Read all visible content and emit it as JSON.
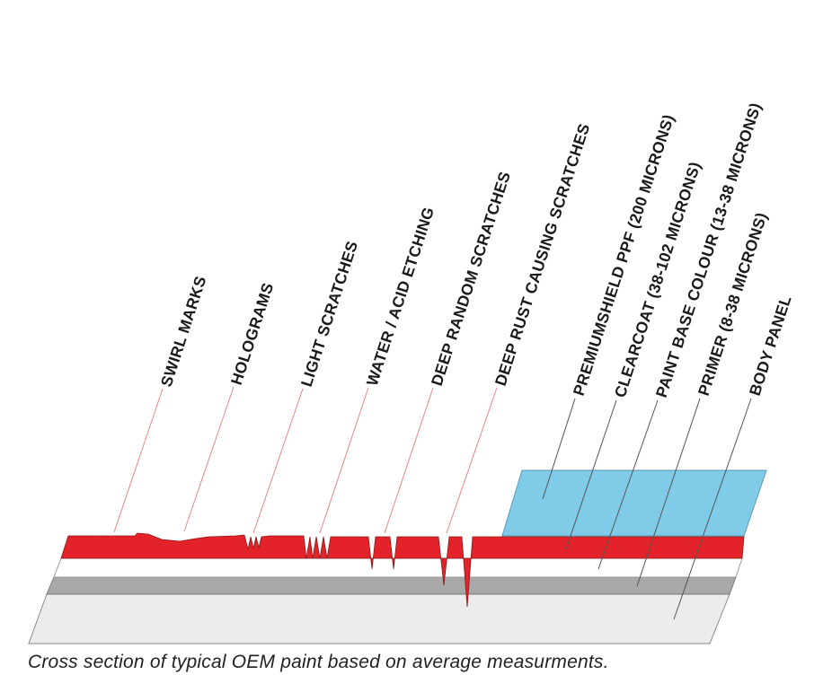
{
  "labels": {
    "swirl_marks": "SWIRL MARKS",
    "holograms": "HOLOGRAMS",
    "light_scratches": "LIGHT SCRATCHES",
    "water_acid_etching": "WATER / ACID ETCHING",
    "deep_random_scratches": "DEEP RANDOM SCRATCHES",
    "deep_rust_scratches": "DEEP RUST CAUSING SCRATCHES",
    "ppf": "PREMIUMSHIELD PPF (200 MICRONS)",
    "clearcoat": "CLEARCOAT (38-102 MICRONS)",
    "paint_base": "PAINT BASE COLOUR (13-38 MICRONS)",
    "primer": "PRIMER (8-38 MICRONS)",
    "body_panel": "BODY PANEL"
  },
  "caption": "Cross section of typical OEM paint based on average measurments.",
  "colors": {
    "ppf": "#7fcbe8",
    "clearcoat": "#e3222a",
    "paint_base": "#ffffff",
    "primer": "#a8a8a8",
    "body_panel": "#ececec",
    "leader_damage": "#e88888",
    "leader_layer": "#555555"
  }
}
